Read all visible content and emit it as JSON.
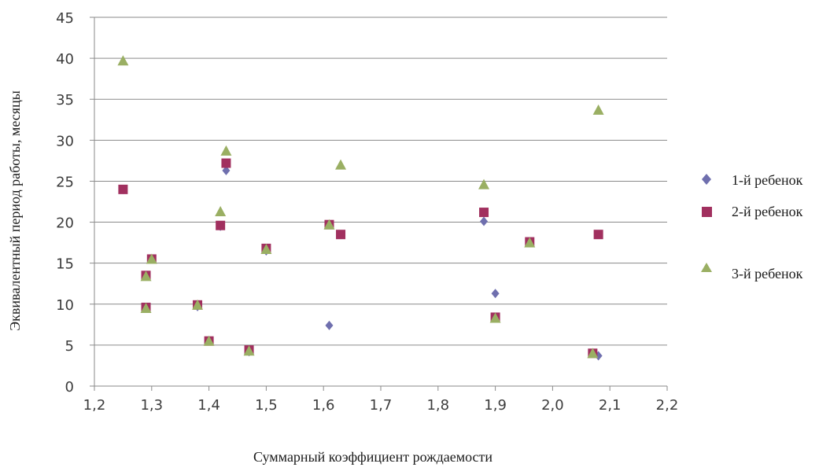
{
  "chart_data": {
    "type": "scatter",
    "xlabel": "Суммарный коэффициент рождаемости",
    "ylabel": "Эквивалентный период работы, месяцы",
    "xlim": [
      1.2,
      2.2
    ],
    "ylim": [
      0,
      45
    ],
    "xticks": [
      1.2,
      1.3,
      1.4,
      1.5,
      1.6,
      1.7,
      1.8,
      1.9,
      2.0,
      2.1,
      2.2
    ],
    "xtick_labels": [
      "1,2",
      "1,3",
      "1,4",
      "1,5",
      "1,6",
      "1,7",
      "1,8",
      "1,9",
      "2,0",
      "2,1",
      "2,2"
    ],
    "yticks": [
      0,
      5,
      10,
      15,
      20,
      25,
      30,
      35,
      40,
      45
    ],
    "grid": "horizontal",
    "legend_position": "right",
    "series": [
      {
        "name": "1-й ребенок",
        "marker": "diamond",
        "color": "#6f6fae",
        "points": [
          [
            1.25,
            24.0
          ],
          [
            1.29,
            9.5
          ],
          [
            1.29,
            13.5
          ],
          [
            1.3,
            15.5
          ],
          [
            1.38,
            9.7
          ],
          [
            1.4,
            5.5
          ],
          [
            1.42,
            19.5
          ],
          [
            1.43,
            26.3
          ],
          [
            1.47,
            4.2
          ],
          [
            1.5,
            16.5
          ],
          [
            1.61,
            7.4
          ],
          [
            1.63,
            18.5
          ],
          [
            1.88,
            20.1
          ],
          [
            1.9,
            11.3
          ],
          [
            1.96,
            17.5
          ],
          [
            2.07,
            4.0
          ],
          [
            2.08,
            3.7
          ]
        ]
      },
      {
        "name": "2-й ребенок",
        "marker": "square",
        "color": "#a1305f",
        "points": [
          [
            1.25,
            24.0
          ],
          [
            1.29,
            9.6
          ],
          [
            1.29,
            13.5
          ],
          [
            1.3,
            15.5
          ],
          [
            1.38,
            9.9
          ],
          [
            1.4,
            5.5
          ],
          [
            1.42,
            19.6
          ],
          [
            1.43,
            27.2
          ],
          [
            1.47,
            4.4
          ],
          [
            1.5,
            16.8
          ],
          [
            1.61,
            19.7
          ],
          [
            1.63,
            18.5
          ],
          [
            1.88,
            21.2
          ],
          [
            1.9,
            8.4
          ],
          [
            1.96,
            17.6
          ],
          [
            2.07,
            4.0
          ],
          [
            2.08,
            18.5
          ]
        ]
      },
      {
        "name": "3-й ребенок",
        "marker": "triangle",
        "color": "#9aaf63",
        "points": [
          [
            1.25,
            39.6
          ],
          [
            1.29,
            9.4
          ],
          [
            1.29,
            13.3
          ],
          [
            1.3,
            15.4
          ],
          [
            1.38,
            9.8
          ],
          [
            1.4,
            5.4
          ],
          [
            1.42,
            21.2
          ],
          [
            1.43,
            28.6
          ],
          [
            1.47,
            4.2
          ],
          [
            1.5,
            16.6
          ],
          [
            1.61,
            19.6
          ],
          [
            1.63,
            26.9
          ],
          [
            1.88,
            24.5
          ],
          [
            1.9,
            8.2
          ],
          [
            1.96,
            17.4
          ],
          [
            2.07,
            3.9
          ],
          [
            2.08,
            33.6
          ]
        ]
      }
    ]
  }
}
